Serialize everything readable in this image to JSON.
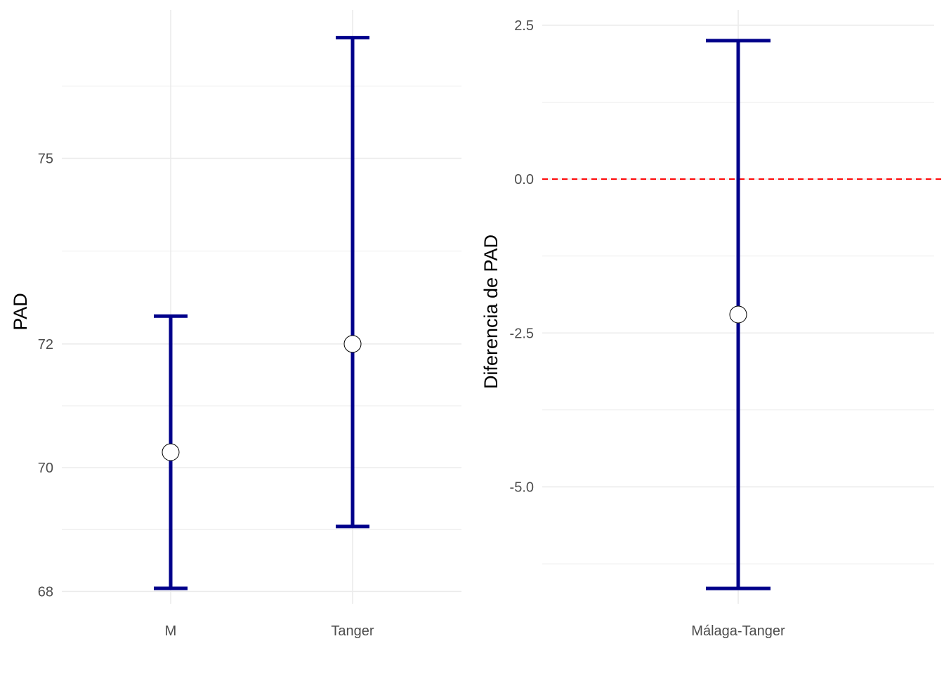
{
  "chart_data": [
    {
      "type": "errorbar",
      "title": "",
      "xlabel": "",
      "ylabel": "PAD",
      "categories": [
        "M",
        "Tanger"
      ],
      "y_ticks": [
        "68",
        "70",
        "72",
        "75"
      ],
      "series": [
        {
          "estimate": [
            70.25,
            72.0
          ],
          "lower": [
            68.05,
            69.05
          ],
          "upper": [
            72.45,
            76.95
          ]
        }
      ],
      "ylim": [
        67.8,
        77.4
      ],
      "grid": true,
      "colors": {
        "bar": "#00008B",
        "point_fill": "#FFFFFF",
        "point_stroke": "#000000",
        "grid": "#EBEBEB"
      }
    },
    {
      "type": "errorbar",
      "title": "",
      "xlabel": "",
      "ylabel": "Diferencia de PAD",
      "categories": [
        "Málaga-Tanger"
      ],
      "y_ticks": [
        "-5.0",
        "-2.5",
        "0.0",
        "2.5"
      ],
      "series": [
        {
          "estimate": [
            -2.2
          ],
          "lower": [
            -6.65
          ],
          "upper": [
            2.25
          ]
        }
      ],
      "reference_line": {
        "y": 0,
        "color": "#FF0000",
        "style": "dashed"
      },
      "ylim": [
        -6.9,
        2.75
      ],
      "grid": true,
      "colors": {
        "bar": "#00008B",
        "point_fill": "#FFFFFF",
        "point_stroke": "#000000",
        "grid": "#EBEBEB"
      }
    }
  ]
}
